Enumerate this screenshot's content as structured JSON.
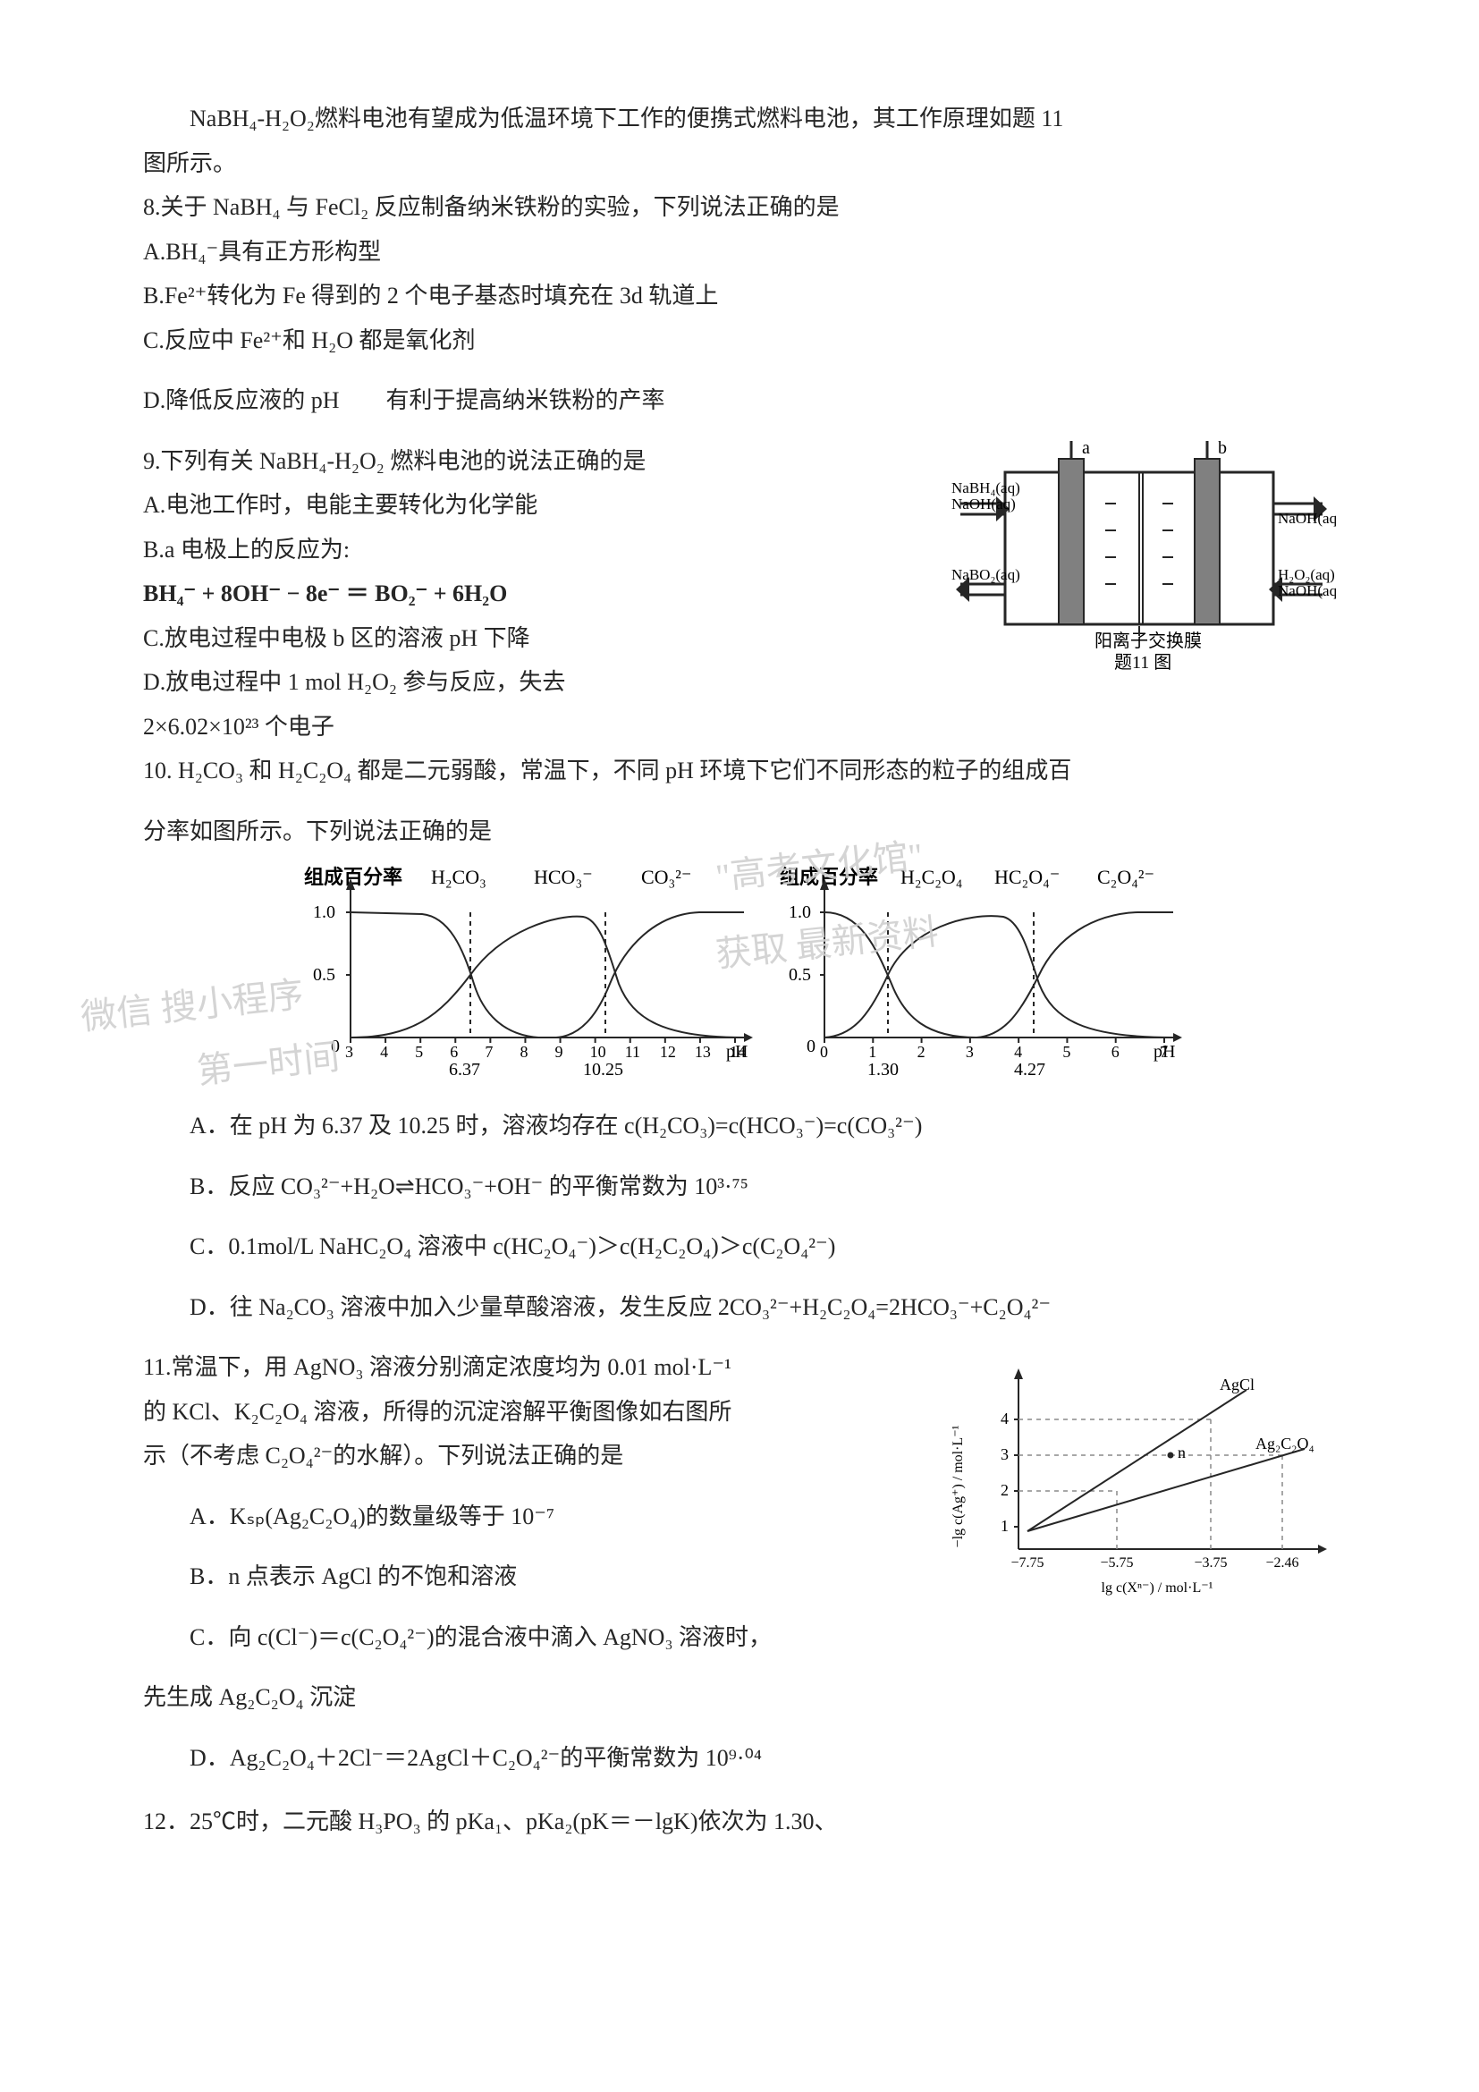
{
  "p": {
    "intro": "NaBH₄-H₂O₂燃料电池有望成为低温环境下工作的便携式燃料电池，其工作原理如题 11",
    "intro2": "图所示。",
    "q8": "8.关于 NaBH₄ 与 FeCl₂ 反应制备纳米铁粉的实验，下列说法正确的是",
    "q8a": "A.BH₄⁻具有正方形构型",
    "q8b": "B.Fe²⁺转化为 Fe 得到的 2 个电子基态时填充在 3d 轨道上",
    "q8c": "C.反应中 Fe²⁺和 H₂O 都是氧化剂",
    "q8d": "D.降低反应液的 pH  有利于提高纳米铁粉的产率",
    "q9": "9.下列有关 NaBH₄-H₂O₂ 燃料电池的说法正确的是",
    "q9a": "A.电池工作时，电能主要转化为化学能",
    "q9b": "B.a 电极上的反应为:",
    "q9eq": "BH₄⁻ + 8OH⁻ − 8e⁻ ＝ BO₂⁻ + 6H₂O",
    "q9c": "C.放电过程中电极 b 区的溶液 pH 下降",
    "q9d": "D.放电过程中 1 mol H₂O₂ 参与反应，失去",
    "q9d2": "2×6.02×10²³ 个电子",
    "q10a": "10. H₂CO₃ 和 H₂C₂O₄ 都是二元弱酸，常温下，不同 pH 环境下它们不同形态的粒子的组成百",
    "q10b": "分率如图所示。下列说法正确的是",
    "q10A": "A．在 pH 为 6.37 及 10.25 时，溶液均存在  c(H₂CO₃)=c(HCO₃⁻)=c(CO₃²⁻)",
    "q10B": "B．反应  CO₃²⁻+H₂O⇌HCO₃⁻+OH⁻ 的平衡常数为 10³·⁷⁵",
    "q10C": "C．0.1mol/L NaHC₂O₄ 溶液中 c(HC₂O₄⁻)＞c(H₂C₂O₄)＞c(C₂O₄²⁻)",
    "q10D": "D．往 Na₂CO₃ 溶液中加入少量草酸溶液，发生反应 2CO₃²⁻+H₂C₂O₄=2HCO₃⁻+C₂O₄²⁻",
    "q11": "11.常温下，用 AgNO₃ 溶液分别滴定浓度均为 0.01 mol·L⁻¹",
    "q11b": "的 KCl、K₂C₂O₄ 溶液，所得的沉淀溶解平衡图像如右图所",
    "q11c": "示（不考虑 C₂O₄²⁻的水解）。下列说法正确的是",
    "q11A": "A．Kₛₚ(Ag₂C₂O₄)的数量级等于 10⁻⁷",
    "q11B": "B．n 点表示 AgCl 的不饱和溶液",
    "q11C": "C．向 c(Cl⁻)＝c(C₂O₄²⁻)的混合液中滴入 AgNO₃ 溶液时，",
    "q11C2": "先生成 Ag₂C₂O₄ 沉淀",
    "q11D": "D．Ag₂C₂O₄＋2Cl⁻＝2AgCl＋C₂O₄²⁻的平衡常数为 10⁹·⁰⁴",
    "q12": "12．25℃时，二元酸 H₃PO₃ 的 pKa₁、pKa₂(pK＝－lgK)依次为 1.30、"
  },
  "fuelCell": {
    "caption": "题11 图",
    "membrane": "阳离子交换膜",
    "leftTop": "NaBH₄(aq)",
    "leftTop2": "NaOH(aq)",
    "leftBottom": "NaBO₂(aq)",
    "rightTop": "NaOH(aq)",
    "rightBottom": "H₂O₂(aq)",
    "rightBottom2": "NaOH(aq)",
    "a": "a",
    "b": "b",
    "colors": {
      "stroke": "#262626",
      "electrode": "#777777",
      "bg": "#ffffff"
    }
  },
  "chartL": {
    "title": "组成百分率",
    "species": [
      "H₂CO₃",
      "HCO₃⁻",
      "CO₃²⁻"
    ],
    "xticks": [
      "3",
      "4",
      "5",
      "6",
      "7",
      "8",
      "9",
      "10",
      "11",
      "12",
      "13",
      "14"
    ],
    "pK": [
      "6.37",
      "10.25"
    ],
    "yticks": [
      "0",
      "0.5",
      "1.0"
    ],
    "xlabel": "pH",
    "stroke": "#262626"
  },
  "chartR": {
    "title": "组成百分率",
    "species": [
      "H₂C₂O₄",
      "HC₂O₄⁻",
      "C₂O₄²⁻"
    ],
    "xticks": [
      "0",
      "1",
      "2",
      "3",
      "4",
      "5",
      "6",
      "7"
    ],
    "pK": [
      "1.30",
      "4.27"
    ],
    "yticks": [
      "0",
      "0.5",
      "1.0"
    ],
    "xlabel": "pH",
    "stroke": "#262626"
  },
  "chart11": {
    "ylabel": "−lg c(Ag⁺) / mol·L⁻¹",
    "xlabel": "lg  c(Xⁿ⁻) / mol·L⁻¹",
    "yticks": [
      "1",
      "2",
      "3",
      "4"
    ],
    "xticks": [
      "−7.75",
      "−5.75",
      "−3.75",
      "−2.46"
    ],
    "AgCl": "AgCl",
    "Ag2C2O4": "Ag₂C₂O₄",
    "n": "n",
    "stroke": "#262626",
    "dash": "#8a8a8a"
  },
  "watermarks": {
    "topR1": "\"高考文化馆\"",
    "topR2": "获取 最新资料",
    "left1": "微信 搜小程序",
    "left2": "第一时间"
  }
}
